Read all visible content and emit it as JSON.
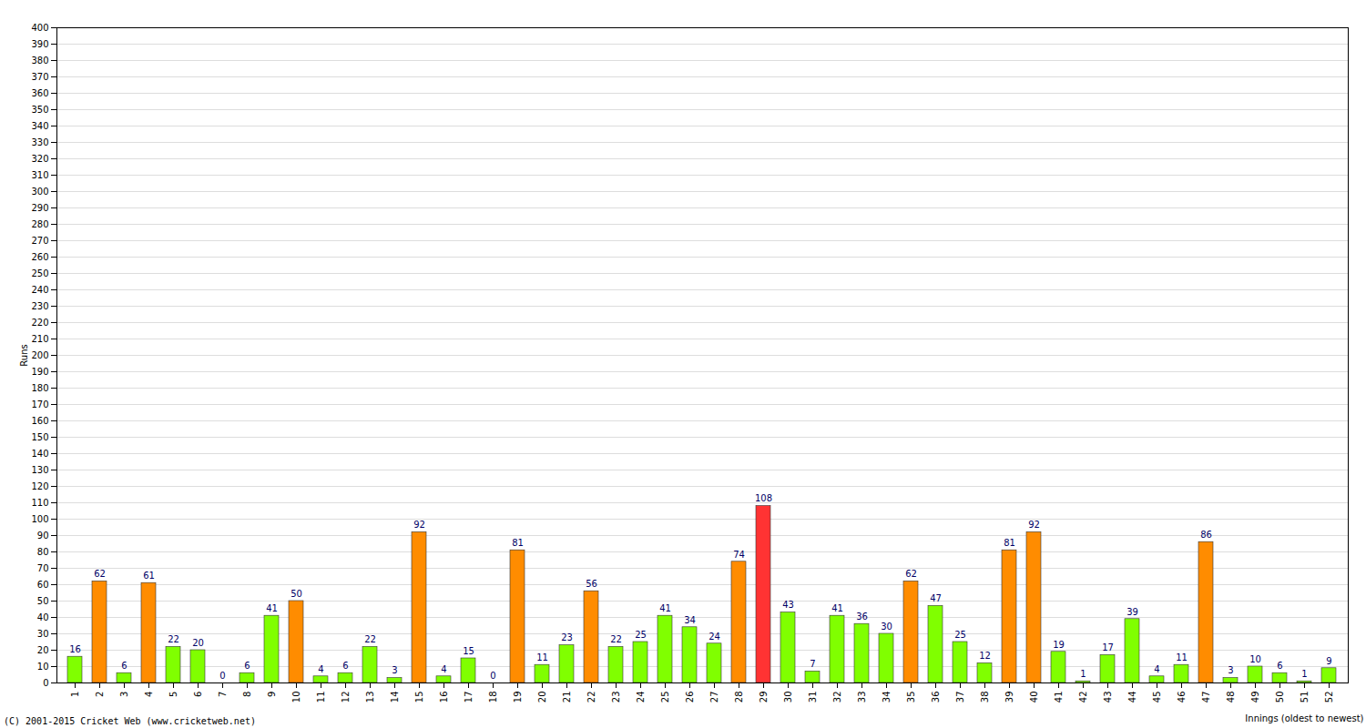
{
  "chart_data": {
    "type": "bar",
    "ylabel": "Runs",
    "xlabel": "Innings (oldest to newest)",
    "caption": "(C) 2001-2015 Cricket Web (www.cricketweb.net)",
    "categories": [
      "1",
      "2",
      "3",
      "4",
      "5",
      "6",
      "7",
      "8",
      "9",
      "10",
      "11",
      "12",
      "13",
      "14",
      "15",
      "16",
      "17",
      "18",
      "19",
      "20",
      "21",
      "22",
      "23",
      "24",
      "25",
      "26",
      "27",
      "28",
      "29",
      "30",
      "31",
      "32",
      "33",
      "34",
      "35",
      "36",
      "37",
      "38",
      "39",
      "40",
      "41",
      "42",
      "43",
      "44",
      "45",
      "46",
      "47",
      "48",
      "49",
      "50",
      "51",
      "52"
    ],
    "values": [
      16,
      62,
      6,
      61,
      22,
      20,
      0,
      6,
      41,
      50,
      4,
      6,
      22,
      3,
      92,
      4,
      15,
      0,
      81,
      11,
      23,
      56,
      22,
      25,
      41,
      34,
      24,
      74,
      108,
      43,
      7,
      41,
      36,
      30,
      62,
      47,
      25,
      12,
      81,
      92,
      19,
      1,
      17,
      39,
      4,
      11,
      86,
      3,
      10,
      6,
      1,
      9
    ],
    "colors": [
      "#80ff00",
      "#ff8c00",
      "#80ff00",
      "#ff8c00",
      "#80ff00",
      "#80ff00",
      "#80ff00",
      "#80ff00",
      "#80ff00",
      "#ff8c00",
      "#80ff00",
      "#80ff00",
      "#80ff00",
      "#80ff00",
      "#ff8c00",
      "#80ff00",
      "#80ff00",
      "#80ff00",
      "#ff8c00",
      "#80ff00",
      "#80ff00",
      "#ff8c00",
      "#80ff00",
      "#80ff00",
      "#80ff00",
      "#80ff00",
      "#80ff00",
      "#ff8c00",
      "#ff3333",
      "#80ff00",
      "#80ff00",
      "#80ff00",
      "#80ff00",
      "#80ff00",
      "#ff8c00",
      "#80ff00",
      "#80ff00",
      "#80ff00",
      "#ff8c00",
      "#ff8c00",
      "#80ff00",
      "#80ff00",
      "#80ff00",
      "#80ff00",
      "#80ff00",
      "#80ff00",
      "#ff8c00",
      "#80ff00",
      "#80ff00",
      "#80ff00",
      "#80ff00",
      "#80ff00"
    ],
    "ylim": [
      0,
      400
    ],
    "yticks": [
      0,
      10,
      20,
      30,
      40,
      50,
      60,
      70,
      80,
      90,
      100,
      110,
      120,
      130,
      140,
      150,
      160,
      170,
      180,
      190,
      200,
      210,
      220,
      230,
      240,
      250,
      260,
      270,
      280,
      290,
      300,
      310,
      320,
      330,
      340,
      350,
      360,
      370,
      380,
      390,
      400
    ],
    "grid": true,
    "data_labels": true
  }
}
